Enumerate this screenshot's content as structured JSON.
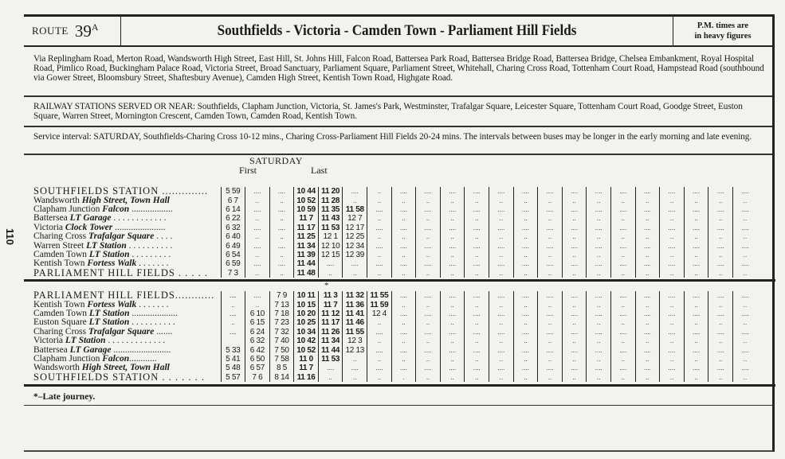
{
  "page_number": "110",
  "header": {
    "route_label": "ROUTE",
    "route_number": "39",
    "route_suffix": "A",
    "title": "Southfields - Victoria - Camden Town - Parliament Hill Fields",
    "pm_note_1": "P.M. times are",
    "pm_note_2": "in heavy figures"
  },
  "via": "Via Replingham Road, Merton Road, Wandsworth High Street, East Hill, St. Johns Hill, Falcon Road, Battersea Park Road, Battersea Bridge Road, Battersea Bridge, Chelsea Embankment, Royal Hospital Road, Pimlico Road, Buckingham Palace Road, Victoria Street, Broad Sanctuary, Parliament Square, Parliament Street, Whitehall, Charing Cross Road, Tottenham Court Road, Hampstead Road (southbound via Gower Street, Bloomsbury Street, Shaftesbury Avenue), Camden High Street, Kentish Town Road, Highgate Road.",
  "railway": "RAILWAY STATIONS SERVED OR NEAR: Southfields, Clapham Junction, Victoria, St. James's Park, Westminster, Trafalgar Square, Leicester Square, Tottenham Court Road, Goodge Street, Euston Square, Warren Street, Mornington Crescent, Camden Town, Camden Road, Kentish Town.",
  "service": "Service interval: SATURDAY, Southfields-Charing Cross 10-12 mins., Charing Cross-Parliament Hill Fields 20-24 mins. The intervals between buses may be longer in the early morning and late evening.",
  "table_header": {
    "day": "SATURDAY",
    "first": "First",
    "last": "Last",
    "late_mark": "*"
  },
  "filler": [
    "....",
    ".."
  ],
  "up": [
    {
      "name": "SOUTHFIELDS STATION",
      "detail": "",
      "leader": " ..............",
      "caps": true,
      "times": [
        "5 59",
        "....",
        "....",
        "10 44",
        "11 20",
        "....",
        "..",
        "...."
      ]
    },
    {
      "name": "Wandsworth ",
      "detail": "High Street, Town Hall",
      "leader": "",
      "times": [
        "6 7",
        "..",
        "..",
        "10 52",
        "11 28",
        "..",
        "..",
        ".."
      ]
    },
    {
      "name": "Clapham Junction ",
      "detail": "Falcon",
      "leader": " ..................",
      "times": [
        "6 14",
        "....",
        "....",
        "10 59",
        "11 35",
        "11 58",
        "....",
        "...."
      ]
    },
    {
      "name": "Battersea ",
      "detail": "LT Garage",
      "leader": " . . . . . . . . . . . .",
      "times": [
        "6 22",
        "..",
        "..",
        "11 7",
        "11 43",
        "12 7",
        "..",
        ".."
      ]
    },
    {
      "name": "Victoria ",
      "detail": "Clock Tower",
      "leader": " ......................",
      "times": [
        "6 32",
        "....",
        "....",
        "11 17",
        "11 53",
        "12 17",
        "....",
        "...."
      ]
    },
    {
      "name": "Charing Cross ",
      "detail": "Trafalgar Square",
      "leader": " . . . .",
      "times": [
        "6 40",
        "..",
        "..",
        "11 25",
        "12 1",
        "12 25",
        "..",
        ".."
      ]
    },
    {
      "name": "Warren Street ",
      "detail": "LT Station",
      "leader": " . . . . . . . . . .",
      "times": [
        "6 49",
        "....",
        "....",
        "11 34",
        "12 10",
        "12 34",
        "....",
        "...."
      ]
    },
    {
      "name": "Camden Town ",
      "detail": "LT Station",
      "leader": " . . . . . . . . .",
      "times": [
        "6 54",
        "..",
        "..",
        "11 39",
        "12 15",
        "12 39",
        "..",
        ".."
      ]
    },
    {
      "name": "Kentish Town ",
      "detail": "Fortess Walk",
      "leader": " . . . . . . .",
      "times": [
        "6 59",
        "....",
        "....",
        "11 44",
        "....",
        "....",
        "....",
        "...."
      ]
    },
    {
      "name": "PARLIAMENT HILL FIELDS",
      "detail": "",
      "leader": " . . . . .",
      "caps": true,
      "times": [
        "7 3",
        "..",
        "..",
        "11 48",
        "..",
        "..",
        "..",
        ".."
      ]
    }
  ],
  "down": [
    {
      "name": "PARLIAMENT HILL FIELDS",
      "detail": "",
      "leader": "............",
      "caps": true,
      "times": [
        "....",
        "....",
        "7 9",
        "10 11",
        "11 3",
        "11 32",
        "11 55",
        "...."
      ]
    },
    {
      "name": "Kentish Town ",
      "detail": "Fortess Walk",
      "leader": " . . . . . . .",
      "times": [
        "..",
        "..",
        "7 13",
        "10 15",
        "11 7",
        "11 36",
        "11 59",
        ".."
      ]
    },
    {
      "name": "Camden Town ",
      "detail": "LT Station",
      "leader": " ....................",
      "times": [
        "....",
        "6 10",
        "7 18",
        "10 20",
        "11 12",
        "11 41",
        "12 4",
        "...."
      ]
    },
    {
      "name": "Euston Square ",
      "detail": "LT Station",
      "leader": " . . . . . . . . . .",
      "times": [
        "..",
        "6 15",
        "7 23",
        "10 25",
        "11 17",
        "11 46",
        "..",
        ".."
      ]
    },
    {
      "name": "Charing Cross ",
      "detail": "Trafalgar Square",
      "leader": " .......",
      "times": [
        "....",
        "6 24",
        "7 32",
        "10 34",
        "11 26",
        "11 55",
        "....",
        "...."
      ]
    },
    {
      "name": "Victoria ",
      "detail": "LT Station",
      "leader": " . . . . . . . . . . . . .",
      "times": [
        "",
        "6 32",
        "7 40",
        "10 42",
        "11 34",
        "12 3",
        "..",
        ".."
      ]
    },
    {
      "name": "Battersea ",
      "detail": "LT Garage",
      "leader": " .........................",
      "times": [
        "5 33",
        "6 42",
        "7 50",
        "10 52",
        "11 44",
        "12 13",
        "....",
        "...."
      ]
    },
    {
      "name": "Clapham Junction ",
      "detail": "Falcon",
      "leader": "............",
      "times": [
        "5 41",
        "6 50",
        "7 58",
        "11 0",
        "11 53",
        "..",
        "..",
        ".."
      ]
    },
    {
      "name": "Wandsworth ",
      "detail": "High Street, Town Hall",
      "leader": "",
      "times": [
        "5 48",
        "6 57",
        "8 5",
        "11 7",
        "....",
        "....",
        "....",
        "...."
      ]
    },
    {
      "name": "SOUTHFIELDS STATION",
      "detail": "",
      "leader": " . . . . . . .",
      "caps": true,
      "times": [
        "5 57",
        "7 6",
        "8 14",
        "11 16",
        "..",
        "..",
        "..",
        "."
      ]
    }
  ],
  "footnote": "*–Late journey."
}
